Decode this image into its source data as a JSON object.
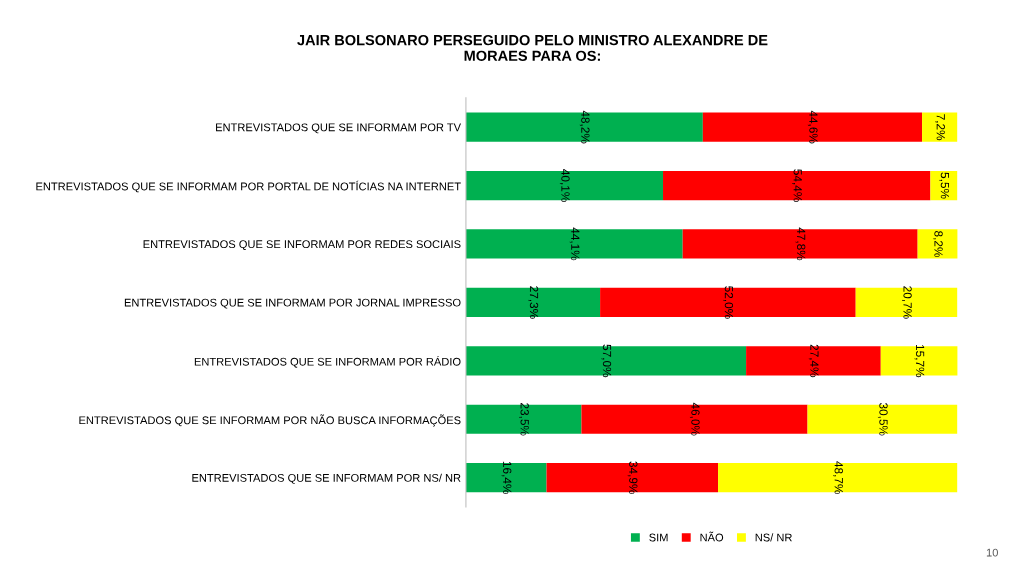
{
  "chart_data": {
    "type": "bar",
    "orientation": "horizontal",
    "stacked": true,
    "title": "JAIR BOLSONARO PERSEGUIDO PELO MINISTRO ALEXANDRE DE\nMORAES PARA OS:",
    "categories": [
      "ENTREVISTADOS QUE SE INFORMAM POR TV",
      "ENTREVISTADOS QUE SE INFORMAM POR PORTAL DE NOTÍCIAS NA INTERNET",
      "ENTREVISTADOS QUE SE INFORMAM POR REDES SOCIAIS",
      "ENTREVISTADOS QUE SE INFORMAM POR JORNAL IMPRESSO",
      "ENTREVISTADOS QUE SE INFORMAM POR RÁDIO",
      "ENTREVISTADOS QUE SE INFORMAM POR NÃO BUSCA INFORMAÇÕES",
      "ENTREVISTADOS QUE SE INFORMAM POR NS/ NR"
    ],
    "series": [
      {
        "name": "SIM",
        "color": "#00b050",
        "values": [
          48.2,
          40.1,
          44.1,
          27.3,
          57.0,
          23.5,
          16.4
        ],
        "value_labels": [
          "48,2%",
          "40,1%",
          "44,1%",
          "27,3%",
          "57,0%",
          "23,5%",
          "16,4%"
        ]
      },
      {
        "name": "NÃO",
        "color": "#ff0000",
        "values": [
          44.6,
          54.4,
          47.8,
          52.0,
          27.4,
          46.0,
          34.9
        ],
        "value_labels": [
          "44,6%",
          "54,4%",
          "47,8%",
          "52,0%",
          "27,4%",
          "46,0%",
          "34,9%"
        ]
      },
      {
        "name": "NS/ NR",
        "color": "#ffff00",
        "values": [
          7.2,
          5.5,
          8.2,
          20.7,
          15.7,
          30.5,
          48.7
        ],
        "value_labels": [
          "7,2%",
          "5,5%",
          "8,2%",
          "20,7%",
          "15,7%",
          "30,5%",
          "48,7%"
        ]
      }
    ],
    "xlim": [
      0,
      100
    ],
    "tick_labels": "y",
    "grid": false,
    "legend": "bottom",
    "annotations": [
      "10"
    ]
  }
}
